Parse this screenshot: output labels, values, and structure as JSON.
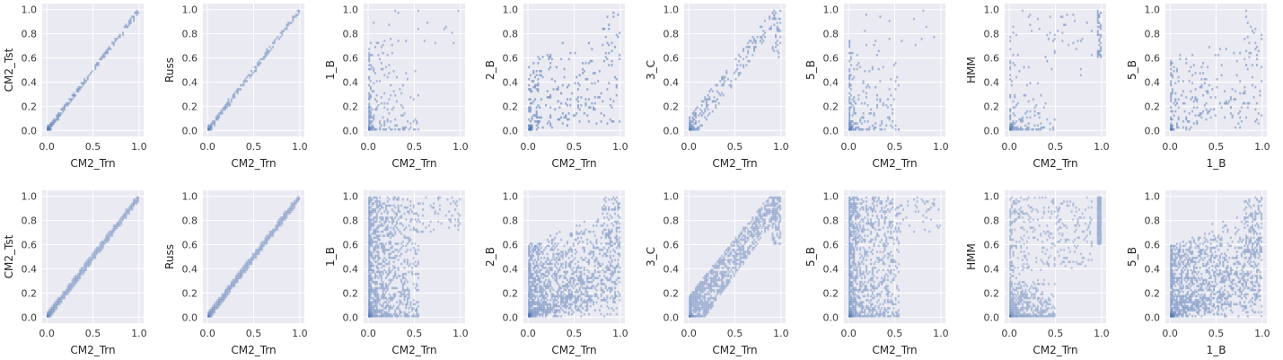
{
  "chart_data": {
    "type": "heatmap",
    "kind": "2d histogram (hexbin-style) grid of scatter comparisons",
    "rows": 2,
    "cols": 8,
    "grid": true,
    "style": {
      "panel_background": "#eaeaf2",
      "grid_color": "#ffffff",
      "bin_color": "#4c72b0"
    },
    "x_ticks": [
      "0.0",
      "0.5",
      "1.0"
    ],
    "y_ticks": [
      "0.0",
      "0.2",
      "0.4",
      "0.6",
      "0.8",
      "1.0"
    ],
    "xlim": [
      0,
      1
    ],
    "ylim": [
      0,
      1
    ],
    "panels": [
      {
        "xlabel": "CM2_Trn",
        "ylabel": "CM2_Tst",
        "pattern": "tight_diagonal",
        "density": "sparse"
      },
      {
        "xlabel": "CM2_Trn",
        "ylabel": "Russ",
        "pattern": "tight_diagonal",
        "density": "sparse"
      },
      {
        "xlabel": "CM2_Trn",
        "ylabel": "1_B",
        "pattern": "low_x_spread",
        "density": "sparse"
      },
      {
        "xlabel": "CM2_Trn",
        "ylabel": "2_B",
        "pattern": "broad_cloud",
        "density": "sparse"
      },
      {
        "xlabel": "CM2_Trn",
        "ylabel": "3_C",
        "pattern": "loose_diagonal",
        "density": "sparse"
      },
      {
        "xlabel": "CM2_Trn",
        "ylabel": "5_B",
        "pattern": "low_x_spread",
        "density": "sparse"
      },
      {
        "xlabel": "CM2_Trn",
        "ylabel": "HMM",
        "pattern": "corners",
        "density": "sparse"
      },
      {
        "xlabel": "1_B",
        "ylabel": "5_B",
        "pattern": "broad_cloud",
        "density": "sparse"
      },
      {
        "xlabel": "CM2_Trn",
        "ylabel": "CM2_Tst",
        "pattern": "tight_diagonal",
        "density": "dense"
      },
      {
        "xlabel": "CM2_Trn",
        "ylabel": "Russ",
        "pattern": "tight_diagonal",
        "density": "dense"
      },
      {
        "xlabel": "CM2_Trn",
        "ylabel": "1_B",
        "pattern": "low_x_spread",
        "density": "dense"
      },
      {
        "xlabel": "CM2_Trn",
        "ylabel": "2_B",
        "pattern": "broad_cloud",
        "density": "dense"
      },
      {
        "xlabel": "CM2_Trn",
        "ylabel": "3_C",
        "pattern": "loose_diagonal",
        "density": "dense"
      },
      {
        "xlabel": "CM2_Trn",
        "ylabel": "5_B",
        "pattern": "low_x_spread",
        "density": "dense"
      },
      {
        "xlabel": "CM2_Trn",
        "ylabel": "HMM",
        "pattern": "corners",
        "density": "dense"
      },
      {
        "xlabel": "1_B",
        "ylabel": "5_B",
        "pattern": "broad_cloud",
        "density": "dense"
      }
    ]
  }
}
